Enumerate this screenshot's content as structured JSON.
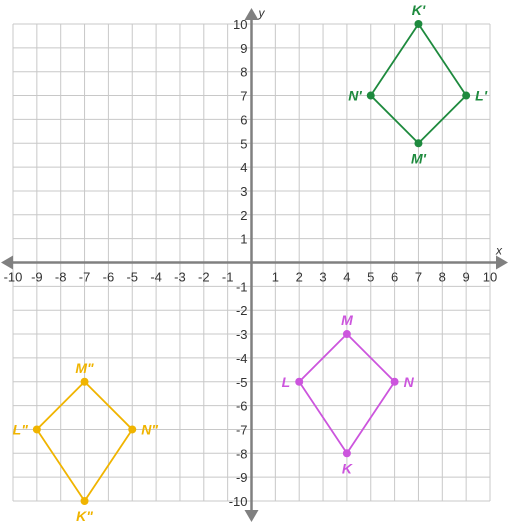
{
  "chart_data": {
    "type": "scatter",
    "xlabel": "x",
    "ylabel": "y",
    "xlim": [
      -10,
      10
    ],
    "ylim": [
      -10,
      10
    ],
    "grid": true,
    "tick_step": 1,
    "shapes": [
      {
        "color": "#1e8a3e",
        "points": [
          {
            "label": "K'",
            "x": 7,
            "y": 10
          },
          {
            "label": "L'",
            "x": 9,
            "y": 7
          },
          {
            "label": "M'",
            "x": 7,
            "y": 5
          },
          {
            "label": "N'",
            "x": 5,
            "y": 7
          }
        ]
      },
      {
        "color": "#cc55dd",
        "points": [
          {
            "label": "M",
            "x": 4,
            "y": -3
          },
          {
            "label": "N",
            "x": 6,
            "y": -5
          },
          {
            "label": "K",
            "x": 4,
            "y": -8
          },
          {
            "label": "L",
            "x": 2,
            "y": -5
          }
        ]
      },
      {
        "color": "#f0b400",
        "points": [
          {
            "label": "M\"",
            "x": -7,
            "y": -5
          },
          {
            "label": "N\"",
            "x": -5,
            "y": -7
          },
          {
            "label": "K\"",
            "x": -7,
            "y": -10
          },
          {
            "label": "L\"",
            "x": -9,
            "y": -7
          }
        ]
      }
    ]
  }
}
